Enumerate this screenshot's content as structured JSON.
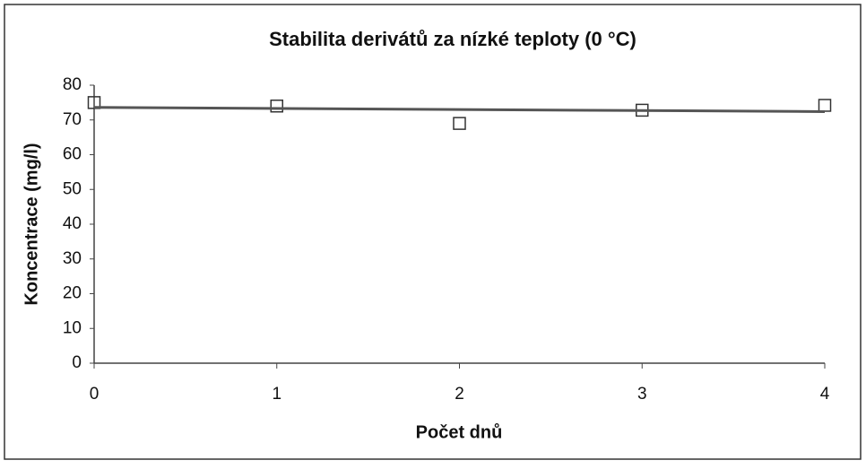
{
  "chart_data": {
    "type": "scatter",
    "title": "Stabilita derivátů za nízké teploty (0 °C)",
    "xlabel": "Počet dnů",
    "ylabel": "Koncentrace (mg/l)",
    "xlim": [
      0,
      4
    ],
    "xticks": [
      0,
      1,
      2,
      3,
      4
    ],
    "ylim": [
      0,
      80
    ],
    "yticks": [
      0,
      10,
      20,
      30,
      40,
      50,
      60,
      70,
      80
    ],
    "grid": false,
    "series": [
      {
        "kind": "marker",
        "color": "#333333",
        "x": [
          0,
          1,
          2,
          3,
          4
        ],
        "values": [
          75,
          74,
          69,
          72.8,
          74.2
        ]
      },
      {
        "kind": "line",
        "color": "#555555",
        "x": [
          0,
          4
        ],
        "values": [
          73.6,
          72.4
        ]
      }
    ]
  }
}
